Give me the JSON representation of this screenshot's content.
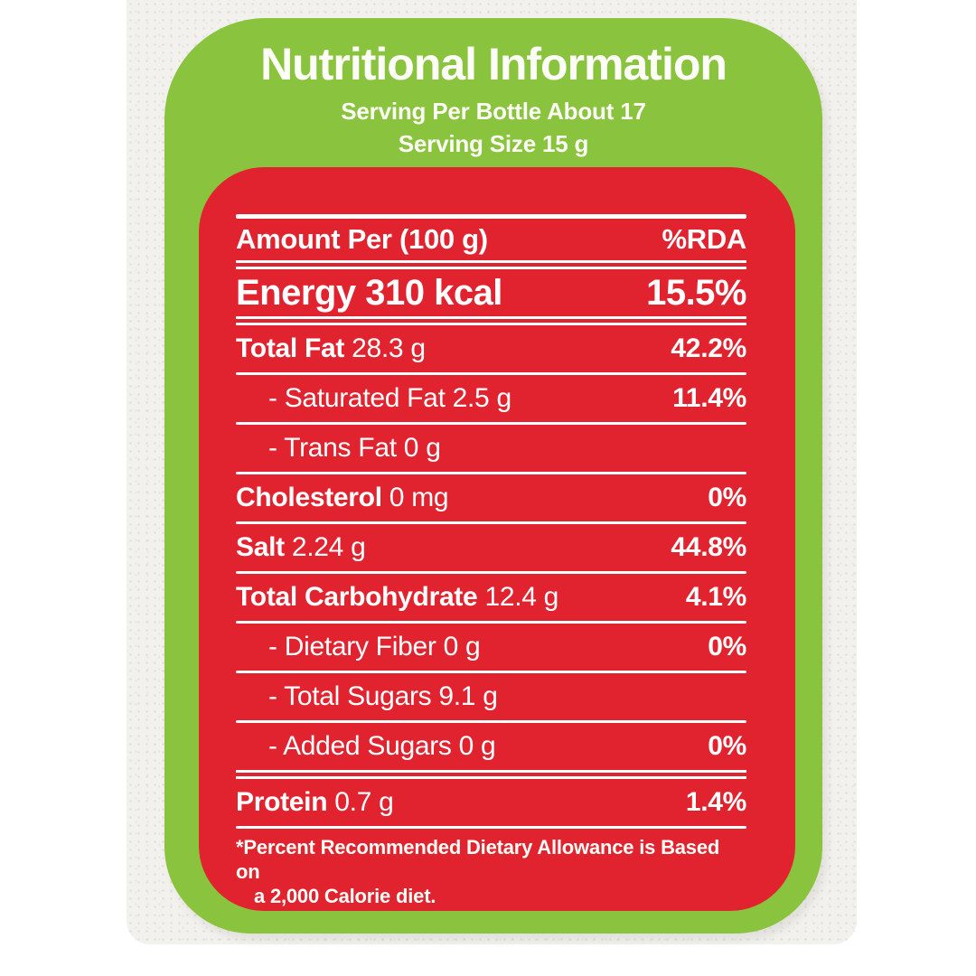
{
  "label": {
    "title": "Nutritional Information",
    "serving_per_bottle": "Serving Per Bottle About 17",
    "serving_size": "Serving Size 15 g"
  },
  "table": {
    "rows": [
      {
        "bold": "Amount Per (100 g)",
        "rest": "",
        "pct": "%RDA",
        "indent": false,
        "size": "header",
        "sep_after": "double"
      },
      {
        "bold": "Energy 310 kcal",
        "rest": "",
        "pct": "15.5%",
        "indent": false,
        "size": "large",
        "sep_after": "double"
      },
      {
        "bold": "Total Fat",
        "rest": "28.3 g",
        "pct": "42.2%",
        "indent": false,
        "size": "normal",
        "sep_after": "single"
      },
      {
        "bold": "",
        "rest": "- Saturated Fat 2.5 g",
        "pct": "11.4%",
        "indent": true,
        "size": "normal",
        "sep_after": "single"
      },
      {
        "bold": "",
        "rest": "- Trans Fat 0 g",
        "pct": "",
        "indent": true,
        "size": "normal",
        "sep_after": "single"
      },
      {
        "bold": "Cholesterol",
        "rest": "0 mg",
        "pct": "0%",
        "indent": false,
        "size": "normal",
        "sep_after": "single"
      },
      {
        "bold": "Salt",
        "rest": "2.24 g",
        "pct": "44.8%",
        "indent": false,
        "size": "normal",
        "sep_after": "single"
      },
      {
        "bold": "Total Carbohydrate",
        "rest": "12.4 g",
        "pct": "4.1%",
        "indent": false,
        "size": "normal",
        "sep_after": "single"
      },
      {
        "bold": "",
        "rest": "- Dietary Fiber 0 g",
        "pct": "0%",
        "indent": true,
        "size": "normal",
        "sep_after": "single"
      },
      {
        "bold": "",
        "rest": "- Total Sugars 9.1 g",
        "pct": "",
        "indent": true,
        "size": "normal",
        "sep_after": "single"
      },
      {
        "bold": "",
        "rest": "- Added Sugars 0 g",
        "pct": "0%",
        "indent": true,
        "size": "normal",
        "sep_after": "double"
      },
      {
        "bold": "Protein",
        "rest": "0.7 g",
        "pct": "1.4%",
        "indent": false,
        "size": "normal",
        "sep_after": "single"
      }
    ],
    "footnote_line1": "*Percent Recommended Dietary Allowance is Based on",
    "footnote_line2": "a 2,000 Calorie diet."
  },
  "colors": {
    "green": "#8ac33e",
    "red": "#e1232f",
    "rule": "#ffffff",
    "text": "#ffffff"
  }
}
